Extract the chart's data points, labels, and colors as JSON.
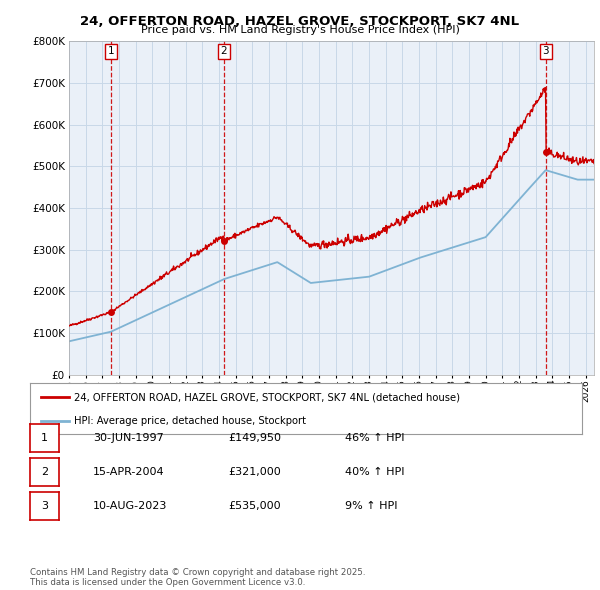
{
  "title": "24, OFFERTON ROAD, HAZEL GROVE, STOCKPORT, SK7 4NL",
  "subtitle": "Price paid vs. HM Land Registry's House Price Index (HPI)",
  "ylim": [
    0,
    800000
  ],
  "yticks": [
    0,
    100000,
    200000,
    300000,
    400000,
    500000,
    600000,
    700000,
    800000
  ],
  "xlim_start": 1995.0,
  "xlim_end": 2026.5,
  "sale_dates": [
    1997.5,
    2004.29,
    2023.61
  ],
  "sale_prices": [
    149950,
    321000,
    535000
  ],
  "sale_labels": [
    "1",
    "2",
    "3"
  ],
  "legend_line1": "24, OFFERTON ROAD, HAZEL GROVE, STOCKPORT, SK7 4NL (detached house)",
  "legend_line2": "HPI: Average price, detached house, Stockport",
  "table_rows": [
    [
      "1",
      "30-JUN-1997",
      "£149,950",
      "46% ↑ HPI"
    ],
    [
      "2",
      "15-APR-2004",
      "£321,000",
      "40% ↑ HPI"
    ],
    [
      "3",
      "10-AUG-2023",
      "£535,000",
      "9% ↑ HPI"
    ]
  ],
  "footer": "Contains HM Land Registry data © Crown copyright and database right 2025.\nThis data is licensed under the Open Government Licence v3.0.",
  "line_color_red": "#cc0000",
  "line_color_blue": "#7fb3d3",
  "grid_color": "#c8d8e8",
  "bg_color": "#eaf0f8",
  "sale_marker_color": "#cc0000",
  "vline_color": "#cc0000",
  "border_color": "#cc0000",
  "hpi_anchors_t": [
    1995.0,
    1997.5,
    2004.3,
    2007.5,
    2009.5,
    2013.0,
    2016.0,
    2020.0,
    2022.0,
    2023.6,
    2025.5,
    2026.5
  ],
  "hpi_anchors_v": [
    80000,
    102705,
    229286,
    270000,
    220000,
    235000,
    280000,
    330000,
    420000,
    490826,
    468000,
    468000
  ]
}
